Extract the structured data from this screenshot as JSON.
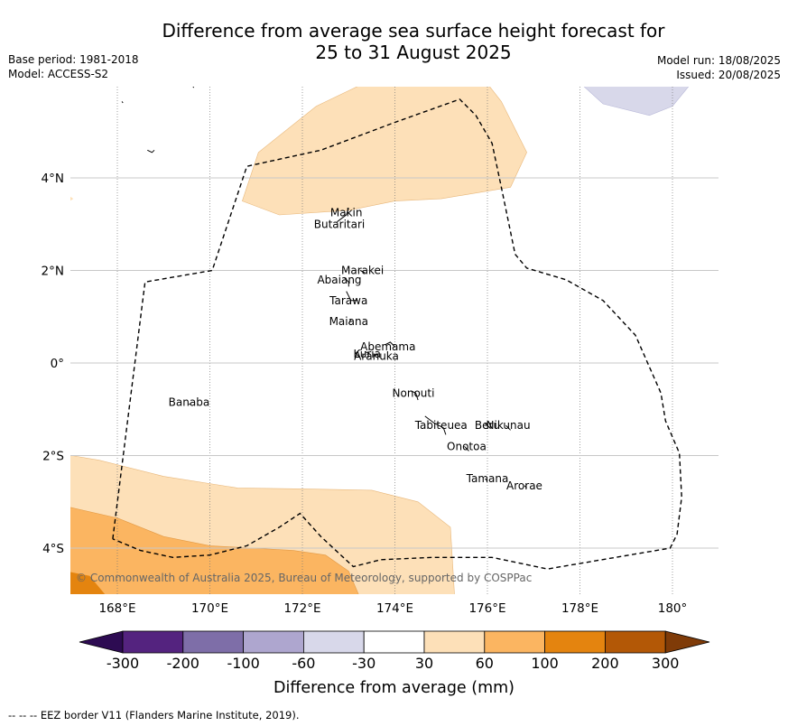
{
  "title_line1": "Difference from average sea surface height forecast for",
  "title_line2": "25 to 31 August 2025",
  "meta_left": [
    "Base period: 1981-2018",
    "Model: ACCESS-S2"
  ],
  "meta_right": [
    "Model run: 18/08/2025",
    "Issued: 20/08/2025"
  ],
  "copyright": "© Commonwealth of Australia 2025, Bureau of Meteorology, supported by COSPPac",
  "footer_note": "--  --  -- EEZ border V11 (Flanders Marine Institute, 2019).",
  "axes": {
    "lon_ticks": [
      {
        "value": 168,
        "label": "168°E"
      },
      {
        "value": 170,
        "label": "170°E"
      },
      {
        "value": 172,
        "label": "172°E"
      },
      {
        "value": 174,
        "label": "174°E"
      },
      {
        "value": 176,
        "label": "176°E"
      },
      {
        "value": 178,
        "label": "178°E"
      },
      {
        "value": 180,
        "label": "180°"
      }
    ],
    "lat_ticks": [
      {
        "value": 4,
        "label": "4°N"
      },
      {
        "value": 2,
        "label": "2°N"
      },
      {
        "value": 0,
        "label": "0°"
      },
      {
        "value": -2,
        "label": "2°S"
      },
      {
        "value": -4,
        "label": "4°S"
      }
    ],
    "lon_range": [
      167,
      181
    ],
    "lat_range": [
      -5,
      6
    ]
  },
  "places": [
    {
      "name": "Makin",
      "lon": 172.95,
      "lat": 3.25
    },
    {
      "name": "Butaritari",
      "lon": 172.8,
      "lat": 3.0
    },
    {
      "name": "Marakei",
      "lon": 173.3,
      "lat": 2.0
    },
    {
      "name": "Abaiang",
      "lon": 172.8,
      "lat": 1.8
    },
    {
      "name": "Tarawa",
      "lon": 173.0,
      "lat": 1.35
    },
    {
      "name": "Maiana",
      "lon": 173.0,
      "lat": 0.9
    },
    {
      "name": "Abemama",
      "lon": 173.85,
      "lat": 0.35
    },
    {
      "name": "Kuria",
      "lon": 173.4,
      "lat": 0.2
    },
    {
      "name": "Aranuka",
      "lon": 173.6,
      "lat": 0.15
    },
    {
      "name": "Nonouti",
      "lon": 174.4,
      "lat": -0.65
    },
    {
      "name": "Banaba",
      "lon": 169.55,
      "lat": -0.85
    },
    {
      "name": "Tabiteuea",
      "lon": 175.0,
      "lat": -1.35
    },
    {
      "name": "Beru",
      "lon": 176.0,
      "lat": -1.35
    },
    {
      "name": "Nikunau",
      "lon": 176.45,
      "lat": -1.35
    },
    {
      "name": "Onotoa",
      "lon": 175.55,
      "lat": -1.8
    },
    {
      "name": "Tamana",
      "lon": 176.0,
      "lat": -2.5
    },
    {
      "name": "Arorae",
      "lon": 176.8,
      "lat": -2.65
    }
  ],
  "colorbar": {
    "label": "Difference from average (mm)",
    "tick_labels": [
      "-300",
      "-200",
      "-100",
      "-60",
      "-30",
      "30",
      "60",
      "100",
      "200",
      "300"
    ],
    "colors": [
      "#2d0b52",
      "#54237f",
      "#7e6ea8",
      "#aea6cf",
      "#d8d8ea",
      "#ffffff",
      "#fde0b8",
      "#fbb561",
      "#e4840f",
      "#b35806",
      "#7f3b08"
    ]
  },
  "legend": {
    "eez_border": "EEZ border V11 (Flanders Marine Institute, 2019)"
  }
}
